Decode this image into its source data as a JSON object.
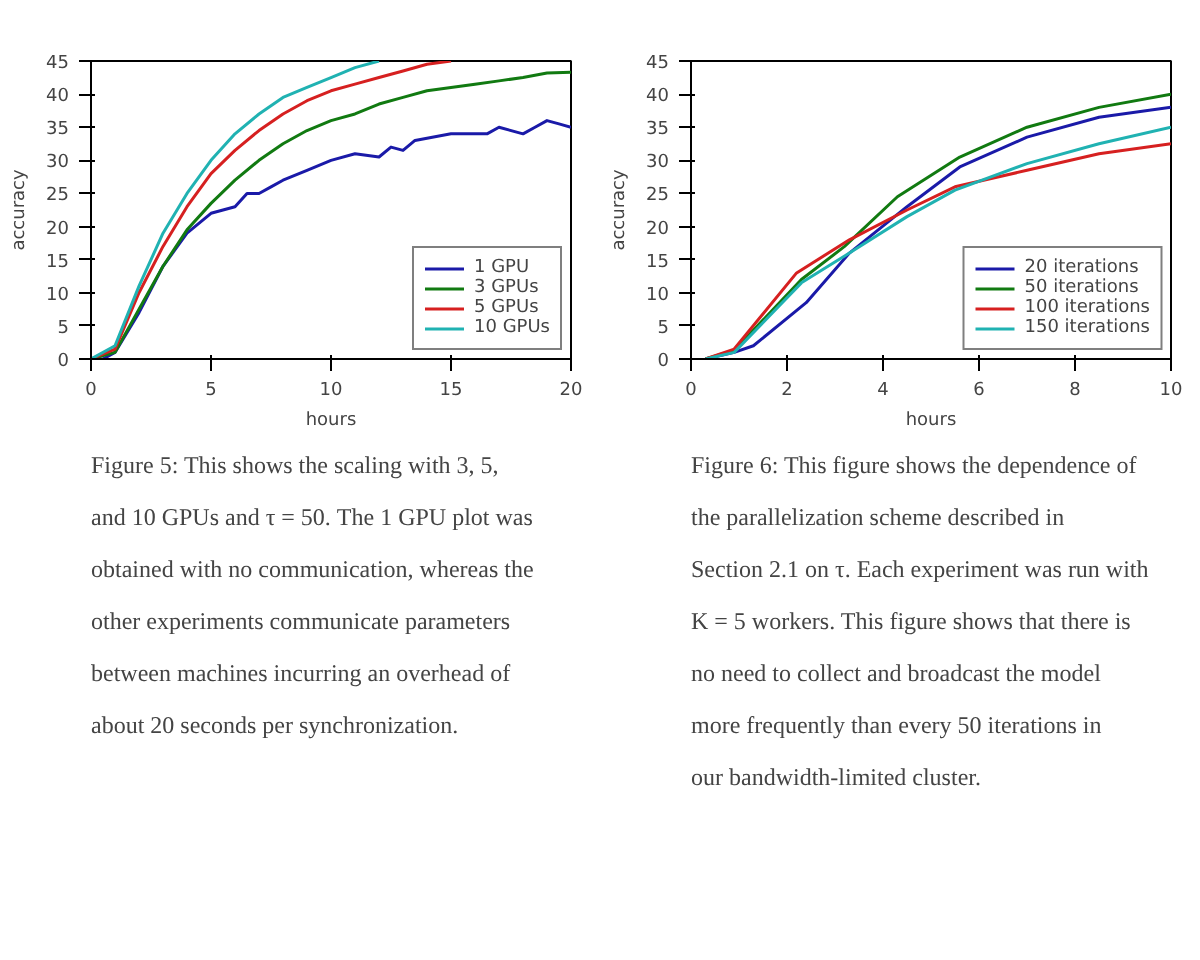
{
  "chart_data": [
    {
      "type": "line",
      "xlabel": "hours",
      "ylabel": "accuracy",
      "xlim": [
        0,
        20
      ],
      "ylim": [
        0,
        45
      ],
      "xticks": [
        0,
        5,
        10,
        15,
        20
      ],
      "yticks": [
        0,
        5,
        10,
        15,
        20,
        25,
        30,
        35,
        40,
        45
      ],
      "grid": false,
      "legend": "bottom right",
      "marker": "none",
      "line_style": "solid",
      "series": [
        {
          "name": "1 GPU",
          "color": "#1a1aa8",
          "x": [
            0,
            0.5,
            1,
            2,
            3,
            4,
            5,
            5.5,
            6,
            6.5,
            7,
            7.5,
            8,
            9,
            10,
            11,
            12,
            12.5,
            13,
            13.5,
            15,
            16,
            16.5,
            17,
            18,
            18.5,
            19,
            19.5,
            20
          ],
          "values": [
            0,
            0,
            1,
            7,
            14,
            19,
            22,
            22.5,
            23,
            25,
            25,
            26,
            27,
            28.5,
            30,
            31,
            30.5,
            32,
            31.5,
            33,
            34,
            34,
            34,
            35,
            34,
            35,
            36,
            35.5,
            35
          ]
        },
        {
          "name": "3 GPUs",
          "color": "#117a11",
          "x": [
            0,
            1,
            2,
            3,
            4,
            5,
            6,
            7,
            8,
            9,
            10,
            11,
            12,
            13,
            14,
            15,
            16,
            17,
            18,
            19,
            20
          ],
          "values": [
            0,
            1,
            7.5,
            14,
            19.5,
            23.5,
            27,
            30,
            32.5,
            34.5,
            36,
            37,
            38.5,
            39.5,
            40.5,
            41,
            41.5,
            42,
            42.5,
            43.2,
            43.3
          ]
        },
        {
          "name": "5 GPUs",
          "color": "#d62020",
          "x": [
            0,
            1,
            2,
            3,
            4,
            5,
            6,
            7,
            8,
            9,
            10,
            11,
            12,
            13,
            14,
            15
          ],
          "values": [
            0,
            1.5,
            10,
            17,
            23,
            28,
            31.5,
            34.5,
            37,
            39,
            40.5,
            41.5,
            42.5,
            43.5,
            44.5,
            45
          ]
        },
        {
          "name": "10 GPUs",
          "color": "#20b2b2",
          "x": [
            0,
            1,
            2,
            3,
            4,
            5,
            6,
            7,
            8,
            9,
            10,
            11,
            12
          ],
          "values": [
            0,
            2,
            11,
            19,
            25,
            30,
            34,
            37,
            39.5,
            41,
            42.5,
            44,
            45
          ]
        }
      ],
      "annotations": [
        "Figure 5: This shows the scaling with 3, 5, and 10 GPUs and τ = 50. The 1 GPU plot was obtained with no communication, whereas the other experiments communicate parameters between machines incurring an overhead of about 20 seconds per synchronization."
      ]
    },
    {
      "type": "line",
      "xlabel": "hours",
      "ylabel": "accuracy",
      "xlim": [
        0,
        10
      ],
      "ylim": [
        0,
        45
      ],
      "xticks": [
        0,
        2,
        4,
        6,
        8,
        10
      ],
      "yticks": [
        0,
        5,
        10,
        15,
        20,
        25,
        30,
        35,
        40,
        45
      ],
      "grid": false,
      "legend": "bottom right",
      "marker": "none",
      "line_style": "solid",
      "series": [
        {
          "name": "20 iterations",
          "color": "#1a1aa8",
          "x": [
            0.3,
            0.9,
            1.3,
            2.4,
            3.3,
            4.5,
            5.6,
            7,
            8.5,
            10
          ],
          "values": [
            0,
            1,
            2,
            8.5,
            16,
            23,
            29,
            33.5,
            36.5,
            38
          ]
        },
        {
          "name": "50 iterations",
          "color": "#117a11",
          "x": [
            0.3,
            0.9,
            2.3,
            3.2,
            4.3,
            5.6,
            7,
            8.5,
            10
          ],
          "values": [
            0,
            1.3,
            12,
            17,
            24.5,
            30.5,
            35,
            38,
            40
          ]
        },
        {
          "name": "100 iterations",
          "color": "#d62020",
          "x": [
            0.3,
            0.9,
            2.2,
            3.3,
            4.5,
            5.5,
            7,
            8.5,
            10
          ],
          "values": [
            0,
            1.5,
            13,
            18,
            22.5,
            26,
            28.5,
            31,
            32.5
          ]
        },
        {
          "name": "150 iterations",
          "color": "#20b2b2",
          "x": [
            0.3,
            0.9,
            2.3,
            3.3,
            4.5,
            5.5,
            7,
            8.5,
            10
          ],
          "values": [
            0,
            1,
            11.5,
            16,
            21.5,
            25.5,
            29.5,
            32.5,
            35
          ]
        }
      ],
      "annotations": [
        "Figure 6: This figure shows the dependence of the parallelization scheme described in Section 2.1 on τ. Each experiment was run with K = 5 workers. This figure shows that there is no need to collect and broadcast the model more frequently than every 50 iterations in our bandwidth-limited cluster."
      ]
    }
  ]
}
